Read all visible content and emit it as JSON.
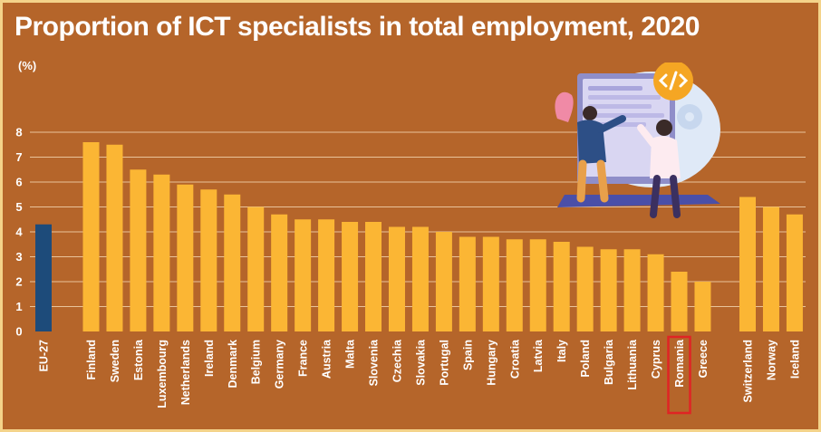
{
  "title": "Proportion of ICT specialists in total employment, 2020",
  "unit_label": "(%)",
  "colors": {
    "background": "#b5652a",
    "bar": "#fbb634",
    "eu_bar": "#1d4b7a",
    "highlight_box": "#e02424",
    "gridline": "#e9c39a"
  },
  "chart_data": {
    "type": "bar",
    "title": "Proportion of ICT specialists in total employment, 2020",
    "ylabel": "(%)",
    "ylim": [
      0,
      8
    ],
    "yticks": [
      0,
      1,
      2,
      3,
      4,
      5,
      6,
      7,
      8
    ],
    "grid": true,
    "categories": [
      "EU-27",
      "Finland",
      "Sweden",
      "Estonia",
      "Luxembourg",
      "Netherlands",
      "Ireland",
      "Denmark",
      "Belgium",
      "Germany",
      "France",
      "Austria",
      "Malta",
      "Slovenia",
      "Czechia",
      "Slovakia",
      "Portugal",
      "Spain",
      "Hungary",
      "Croatia",
      "Latvia",
      "Italy",
      "Poland",
      "Bulgaria",
      "Lithuania",
      "Cyprus",
      "Romania",
      "Greece",
      "Switzerland",
      "Norway",
      "Iceland"
    ],
    "values": [
      4.3,
      7.6,
      7.5,
      6.5,
      6.3,
      5.9,
      5.7,
      5.5,
      5.0,
      4.7,
      4.5,
      4.5,
      4.4,
      4.4,
      4.2,
      4.2,
      4.0,
      3.8,
      3.8,
      3.7,
      3.7,
      3.6,
      3.4,
      3.3,
      3.3,
      3.1,
      2.4,
      2.0,
      5.4,
      5.0,
      4.7
    ],
    "highlighted": [
      "EU-27"
    ],
    "boxed_label": "Romania"
  }
}
